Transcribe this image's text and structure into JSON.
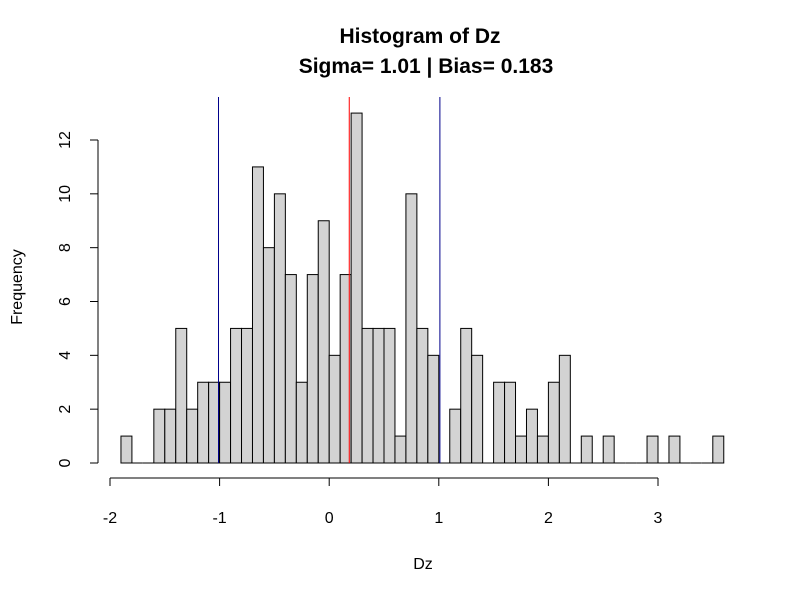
{
  "chart_data": {
    "type": "bar",
    "title": "Histogram of Dz",
    "subtitle": "Sigma= 1.01 | Bias= 0.183",
    "xlabel": "Dz",
    "ylabel": "Frequency",
    "xlim": [
      -2,
      3.6
    ],
    "ylim": [
      0,
      13
    ],
    "x_ticks": [
      -2,
      -1,
      0,
      1,
      2,
      3
    ],
    "y_ticks": [
      0,
      2,
      4,
      6,
      8,
      10,
      12
    ],
    "bin_width": 0.1,
    "bins_start": [
      -1.9,
      -1.8,
      -1.7,
      -1.6,
      -1.5,
      -1.4,
      -1.3,
      -1.2,
      -1.1,
      -1.0,
      -0.9,
      -0.8,
      -0.7,
      -0.6,
      -0.5,
      -0.4,
      -0.3,
      -0.2,
      -0.1,
      0.0,
      0.1,
      0.2,
      0.3,
      0.4,
      0.5,
      0.6,
      0.7,
      0.8,
      0.9,
      1.0,
      1.1,
      1.2,
      1.3,
      1.4,
      1.5,
      1.6,
      1.7,
      1.8,
      1.9,
      2.0,
      2.1,
      2.2,
      2.3,
      2.4,
      2.5,
      2.6,
      2.7,
      2.8,
      2.9,
      3.0,
      3.1,
      3.2,
      3.3,
      3.4,
      3.5
    ],
    "values": [
      1,
      0,
      0,
      2,
      2,
      5,
      2,
      3,
      3,
      3,
      5,
      5,
      11,
      8,
      10,
      7,
      3,
      7,
      9,
      4,
      7,
      13,
      5,
      5,
      5,
      1,
      10,
      5,
      4,
      0,
      2,
      5,
      4,
      0,
      3,
      3,
      1,
      2,
      1,
      3,
      4,
      0,
      1,
      0,
      1,
      0,
      0,
      0,
      1,
      0,
      1,
      0,
      0,
      0,
      1
    ],
    "vertical_lines": [
      {
        "x": -1.01,
        "color": "#00008b"
      },
      {
        "x": 0.183,
        "color": "#ff0000"
      },
      {
        "x": 1.01,
        "color": "#00008b"
      }
    ],
    "bar_fill": "#d3d3d3",
    "grid": false
  }
}
